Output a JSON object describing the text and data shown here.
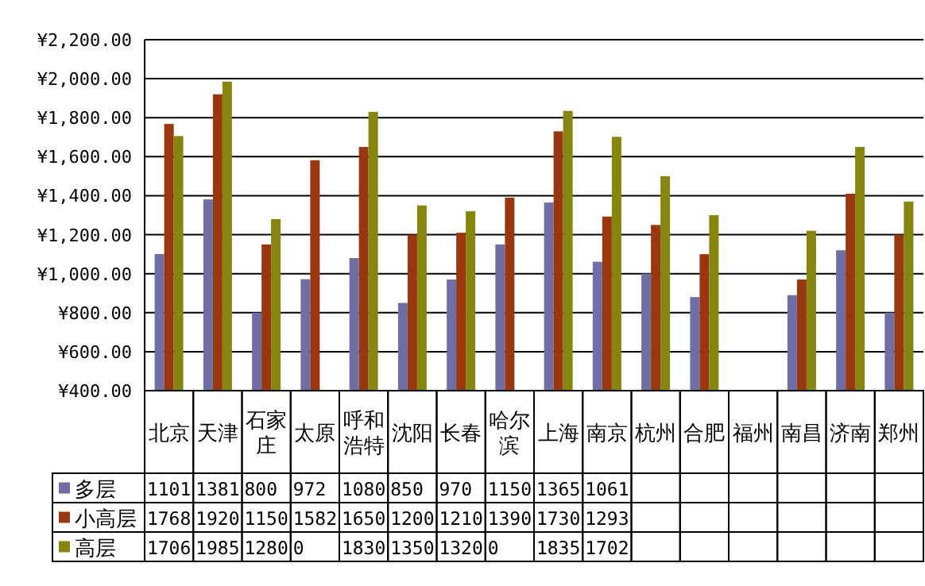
{
  "chart_data": {
    "type": "bar",
    "categories": [
      "北京",
      "天津",
      "石家庄",
      "太原",
      "呼和浩特",
      "沈阳",
      "长春",
      "哈尔滨",
      "上海",
      "南京",
      "杭州",
      "合肥",
      "福州",
      "南昌",
      "济南",
      "郑州"
    ],
    "series": [
      {
        "name": "多层",
        "color": "#6f6fa6",
        "values": [
          1101,
          1381,
          800,
          972,
          1080,
          850,
          970,
          1150,
          1365,
          1061,
          1000,
          880,
          null,
          890,
          1120,
          800
        ],
        "value_labels": [
          "1101",
          "1381",
          "800",
          "972",
          "1080",
          "850",
          "970",
          "1150",
          "1365",
          "1061",
          null,
          null,
          null,
          null,
          null,
          null
        ]
      },
      {
        "name": "小高层",
        "color": "#993810",
        "values": [
          1768,
          1920,
          1150,
          1582,
          1650,
          1200,
          1210,
          1390,
          1730,
          1293,
          1250,
          1100,
          null,
          970,
          1410,
          1200
        ],
        "value_labels": [
          "1768",
          "1920",
          "1150",
          "1582",
          "1650",
          "1200",
          "1210",
          "1390",
          "1730",
          "1293",
          null,
          null,
          null,
          null,
          null,
          null
        ]
      },
      {
        "name": "高层",
        "color": "#858510",
        "values": [
          1706,
          1985,
          1280,
          null,
          1830,
          1350,
          1320,
          null,
          1835,
          1702,
          1500,
          1300,
          null,
          1220,
          1650,
          1370
        ],
        "value_labels": [
          "1706",
          "1985",
          "1280",
          "0",
          "1830",
          "1350",
          "1320",
          "0",
          "1835",
          "1702",
          null,
          null,
          null,
          null,
          null,
          null
        ]
      }
    ],
    "ylim": [
      400,
      2200
    ],
    "yticks": [
      {
        "value": 400,
        "label": "¥400.00"
      },
      {
        "value": 600,
        "label": "¥600.00"
      },
      {
        "value": 800,
        "label": "¥800.00"
      },
      {
        "value": 1000,
        "label": "¥1,000.00"
      },
      {
        "value": 1200,
        "label": "¥1,200.00"
      },
      {
        "value": 1400,
        "label": "¥1,400.00"
      },
      {
        "value": 1600,
        "label": "¥1,600.00"
      },
      {
        "value": 1800,
        "label": "¥1,800.00"
      },
      {
        "value": 2000,
        "label": "¥2,000.00"
      },
      {
        "value": 2200,
        "label": "¥2,200.00"
      }
    ],
    "grid": "y",
    "legend": "bottom"
  }
}
